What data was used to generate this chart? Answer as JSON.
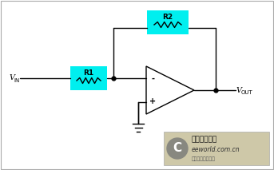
{
  "bg_color": "#ffffff",
  "line_color": "#000000",
  "cyan_color": "#00EFEF",
  "fig_width": 3.43,
  "fig_height": 2.13,
  "dpi": 100,
  "r1_label": "R1",
  "r2_label": "R2",
  "vin_label": "V",
  "vin_sub": "IN",
  "vout_label": "V",
  "vout_sub": "OUT",
  "minus_sign": "-",
  "plus_sign": "+",
  "watermark_text1": "电子工程世界",
  "watermark_text2": "eeworld.com.cn",
  "watermark_text3": "新型电子设计之家",
  "wm_bg": "#cec8a8",
  "wm_circle_bg": "#888880",
  "wm_border": "#aaaaaa",
  "border_color": "#aaaaaa"
}
